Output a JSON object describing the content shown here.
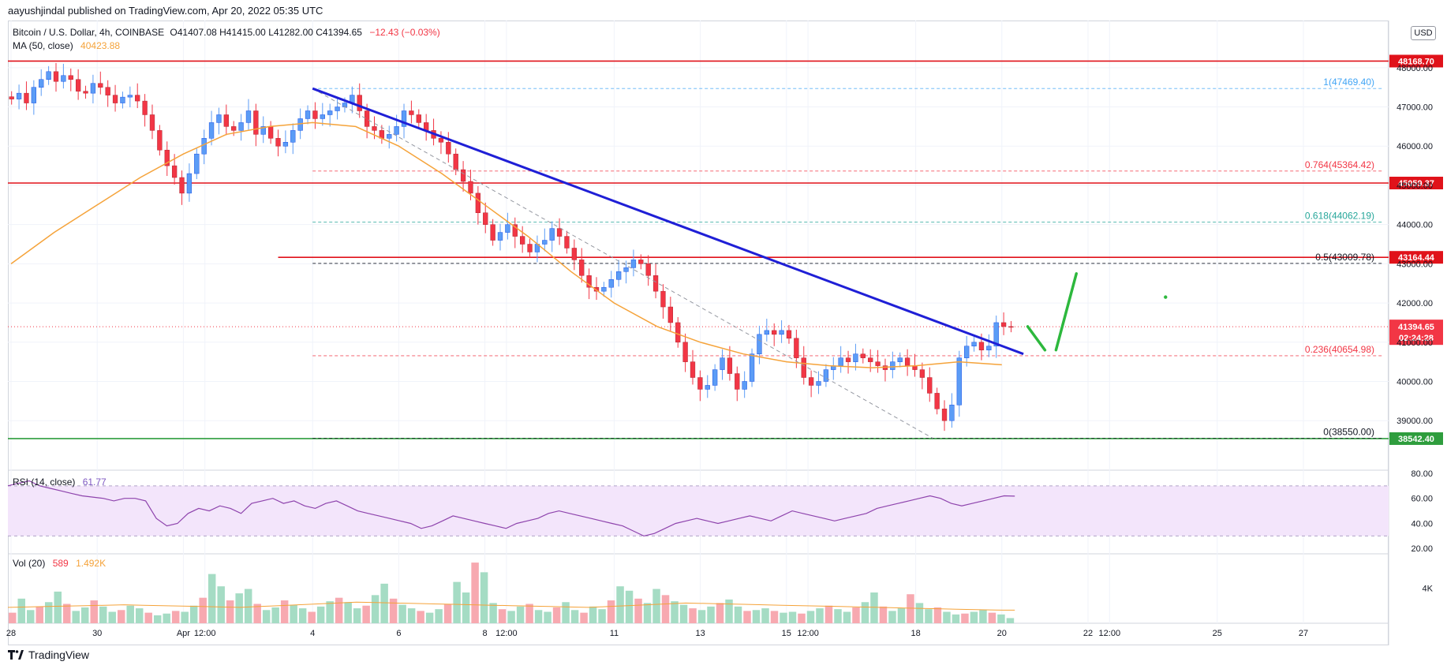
{
  "publisher": "aayushjindal published on TradingView.com, Apr 20, 2022 05:35 UTC",
  "footer_brand": "TradingView",
  "currency_button": "USD",
  "legend": {
    "symbol": "Bitcoin / U.S. Dollar, 4h, COINBASE",
    "ohlc": "O41407.08 H41415.00 L41282.00 C41394.65",
    "change": "−12.43 (−0.03%)",
    "ma_label": "MA (50, close)",
    "ma_value": "40423.88",
    "rsi_label": "RSI (14, close)",
    "rsi_value": "61.77",
    "vol_label": "Vol (20)",
    "vol_value": "589",
    "vol_ma_value": "1.492K"
  },
  "colors": {
    "up": "#5b9cf6",
    "down": "#f23645",
    "trendline": "#1f1fd6",
    "ma": "#f5a33a",
    "rsi": "#8e44ad",
    "support": "#2e9d3d",
    "projection": "#2db83d"
  },
  "chart_data": [
    {
      "type": "candlestick",
      "title": "Bitcoin / U.S. Dollar, 4h, COINBASE",
      "ylim": [
        38300,
        48600
      ],
      "y_ticks": [
        39000,
        40000,
        41000,
        42000,
        43000,
        44000,
        45000,
        46000,
        47000,
        48000
      ],
      "y_tick_labels": [
        "39000.00",
        "40000.00",
        "41000.00",
        "42000.00",
        "43000.00",
        "44000.00",
        "45000.00",
        "46000.00",
        "47000.00",
        "48000.00"
      ],
      "x_ticks": [
        {
          "label": "28",
          "day": 0
        },
        {
          "label": "30",
          "day": 2
        },
        {
          "label": "Apr",
          "day": 4
        },
        {
          "label": "12:00",
          "day": 4.5
        },
        {
          "label": "4",
          "day": 7
        },
        {
          "label": "6",
          "day": 9
        },
        {
          "label": "8",
          "day": 11
        },
        {
          "label": "12:00",
          "day": 11.5
        },
        {
          "label": "11",
          "day": 14
        },
        {
          "label": "13",
          "day": 16
        },
        {
          "label": "15",
          "day": 18
        },
        {
          "label": "12:00",
          "day": 18.5
        },
        {
          "label": "18",
          "day": 21
        },
        {
          "label": "20",
          "day": 23
        },
        {
          "label": "22",
          "day": 25
        },
        {
          "label": "12:00",
          "day": 25.5
        },
        {
          "label": "25",
          "day": 28
        },
        {
          "label": "27",
          "day": 30
        }
      ],
      "candles_close": [
        47200,
        47350,
        47100,
        47500,
        47700,
        47900,
        47650,
        47800,
        47700,
        47400,
        47350,
        47600,
        47500,
        47300,
        47100,
        47250,
        47300,
        47150,
        46800,
        46400,
        45900,
        45500,
        45200,
        44800,
        45300,
        45800,
        46200,
        46600,
        46800,
        46500,
        46400,
        46600,
        46900,
        46300,
        46500,
        46200,
        46000,
        46100,
        46400,
        46700,
        46900,
        46700,
        46800,
        46900,
        47000,
        47100,
        47300,
        46900,
        46500,
        46400,
        46200,
        46300,
        46500,
        46900,
        46800,
        46600,
        46400,
        46200,
        46100,
        45800,
        45400,
        45100,
        44800,
        44300,
        44000,
        43600,
        43800,
        44000,
        43700,
        43500,
        43300,
        43500,
        43600,
        43900,
        43700,
        43400,
        43100,
        42700,
        42400,
        42300,
        42400,
        42600,
        42800,
        42900,
        43100,
        43000,
        42700,
        42300,
        41900,
        41500,
        41000,
        40500,
        40100,
        39800,
        39900,
        40300,
        40600,
        40200,
        39800,
        40000,
        40700,
        41200,
        41300,
        41200,
        41300,
        41100,
        40600,
        40100,
        39900,
        40000,
        40300,
        40400,
        40600,
        40500,
        40700,
        40600,
        40500,
        40400,
        40300,
        40500,
        40600,
        40400,
        40300,
        40100,
        39700,
        39300,
        39000,
        39400,
        40600,
        40900,
        41000,
        40800,
        40900,
        41500,
        41400,
        41394.65
      ],
      "ma50": {
        "name": "MA (50, close)",
        "points": [
          [
            0,
            43000
          ],
          [
            1,
            43800
          ],
          [
            2,
            44500
          ],
          [
            3,
            45200
          ],
          [
            4,
            45800
          ],
          [
            5,
            46300
          ],
          [
            6,
            46500
          ],
          [
            7,
            46600
          ],
          [
            8,
            46500
          ],
          [
            9,
            46000
          ],
          [
            10,
            45300
          ],
          [
            11,
            44500
          ],
          [
            12,
            43700
          ],
          [
            13,
            42800
          ],
          [
            14,
            42000
          ],
          [
            15,
            41400
          ],
          [
            16,
            41000
          ],
          [
            17,
            40700
          ],
          [
            18,
            40500
          ],
          [
            19,
            40400
          ],
          [
            20,
            40350
          ],
          [
            21,
            40400
          ],
          [
            22,
            40500
          ],
          [
            23,
            40423.88
          ]
        ]
      },
      "trendline": {
        "from": {
          "day": 7.0,
          "price": 47469.4
        },
        "to": {
          "day": 23.5,
          "price": 40700
        }
      },
      "fib_dashed_line": {
        "from": {
          "day": 7.0,
          "price": 47469.4
        },
        "to": {
          "day": 21.4,
          "price": 38550
        }
      },
      "fib_levels": [
        {
          "label": "1(47469.40)",
          "price": 47469.4,
          "color": "#42a5f5",
          "style": "dash"
        },
        {
          "label": "0.764(45364.42)",
          "price": 45364.42,
          "color": "#f23645",
          "style": "dash"
        },
        {
          "label": "0.618(44062.19)",
          "price": 44062.19,
          "color": "#26a69a",
          "style": "dash"
        },
        {
          "label": "0.5(43009.78)",
          "price": 43009.78,
          "color": "#131722",
          "style": "dash"
        },
        {
          "label": "0.236(40654.98)",
          "price": 40654.98,
          "color": "#f23645",
          "style": "dash"
        },
        {
          "label": "0(38550.00)",
          "price": 38550.0,
          "color": "#131722",
          "style": "dash"
        }
      ],
      "horizontal_levels": [
        {
          "label": "48168.70",
          "price": 48168.7,
          "color": "#e0121a"
        },
        {
          "label": "45059.37",
          "price": 45059.37,
          "color": "#e0121a"
        },
        {
          "label": "43164.44",
          "price": 43164.44,
          "color": "#e0121a"
        },
        {
          "label": "38542.40",
          "price": 38542.4,
          "color": "#2e9d3d"
        }
      ],
      "current_price": {
        "label": "41394.65",
        "countdown": "02:24:28",
        "price": 41394.65
      },
      "projection": [
        [
          23.6,
          41400
        ],
        [
          24.0,
          40800
        ],
        [
          24.4,
          42750
        ]
      ]
    },
    {
      "type": "line",
      "title": "RSI (14, close)",
      "ylim": [
        17,
        85
      ],
      "y_ticks": [
        20,
        40,
        60,
        80
      ],
      "y_tick_labels": [
        "20.00",
        "40.00",
        "60.00",
        "80.00"
      ],
      "band": [
        30,
        70
      ],
      "values": [
        70,
        72,
        74,
        70,
        68,
        66,
        64,
        62,
        61,
        60,
        58,
        60,
        60,
        58,
        44,
        38,
        40,
        48,
        52,
        50,
        54,
        52,
        48,
        56,
        58,
        60,
        56,
        58,
        54,
        52,
        56,
        58,
        54,
        50,
        48,
        46,
        44,
        42,
        40,
        36,
        38,
        42,
        46,
        44,
        42,
        40,
        38,
        36,
        40,
        42,
        44,
        48,
        50,
        48,
        46,
        44,
        42,
        40,
        38,
        34,
        30,
        32,
        36,
        40,
        42,
        44,
        42,
        40,
        42,
        44,
        46,
        44,
        42,
        46,
        50,
        48,
        46,
        44,
        42,
        44,
        46,
        48,
        52,
        54,
        56,
        58,
        60,
        62,
        60,
        56,
        54,
        56,
        58,
        60,
        62,
        61.77
      ]
    },
    {
      "type": "bar",
      "title": "Vol (20)",
      "y_ticks": [
        4000
      ],
      "y_tick_labels": [
        "4K"
      ],
      "ylim": [
        0,
        7000
      ],
      "values": [
        1200,
        2800,
        1500,
        1900,
        2400,
        3600,
        2200,
        1400,
        1800,
        2600,
        1900,
        1300,
        1500,
        2000,
        1700,
        1200,
        900,
        1100,
        1400,
        1300,
        2000,
        2900,
        5600,
        4200,
        2600,
        3400,
        3900,
        2200,
        1500,
        1800,
        2600,
        2100,
        1700,
        1300,
        1900,
        2500,
        2900,
        2400,
        1700,
        2000,
        3200,
        4500,
        2800,
        2100,
        1700,
        1400,
        1200,
        1600,
        2200,
        4700,
        3500,
        6900,
        5800,
        2300,
        1600,
        1400,
        1900,
        2200,
        1500,
        1300,
        1800,
        2400,
        1500,
        1200,
        1900,
        1600,
        2600,
        4200,
        3700,
        2800,
        2300,
        3900,
        3200,
        2500,
        2100,
        1700,
        1500,
        1900,
        2300,
        2700,
        1900,
        1400,
        1500,
        1700,
        1400,
        1200,
        1300,
        1100,
        1400,
        1700,
        2000,
        1600,
        1300,
        1800,
        2400,
        3500,
        1900,
        1400,
        1700,
        3300,
        2300,
        1600,
        1800,
        1300,
        1000,
        1100,
        1300,
        1500,
        1200,
        1000,
        589
      ],
      "ma_values": [
        1800,
        1850,
        1900,
        1950,
        2000,
        2050,
        2100,
        2050,
        2000,
        1950,
        1900,
        1850,
        1800,
        1900,
        2000,
        2100,
        2200,
        2300,
        2400,
        2350,
        2300,
        2250,
        2200,
        2150,
        2100,
        2050,
        2000,
        1950,
        1900,
        1850,
        1800,
        1900,
        2000,
        2100,
        2200,
        2300,
        2250,
        2200,
        2150,
        2100,
        2050,
        2000,
        1950,
        1900,
        1850,
        1800,
        1750,
        1700,
        1650,
        1600,
        1550,
        1500,
        1492
      ]
    }
  ]
}
